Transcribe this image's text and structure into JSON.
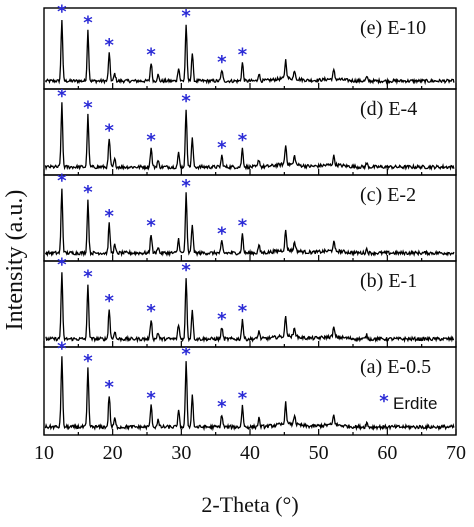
{
  "colors": {
    "trace": "#000000",
    "marker": "#2a2ad6",
    "frame": "#000000"
  },
  "chart_data": {
    "type": "line",
    "xlabel": "2-Theta (°)",
    "ylabel": "Intensity (a.u.)",
    "xlim": [
      10,
      70
    ],
    "x_ticks": [
      "10",
      "20",
      "30",
      "40",
      "50",
      "60",
      "70"
    ],
    "stacked_panels": true,
    "peak_marker": {
      "symbol": "*",
      "label": "Erdite"
    },
    "peaks": [
      {
        "x": 12.6,
        "h": 1.0,
        "marked": true
      },
      {
        "x": 16.4,
        "h": 0.82,
        "marked": true
      },
      {
        "x": 19.5,
        "h": 0.45,
        "marked": true
      },
      {
        "x": 20.3,
        "h": 0.12,
        "marked": false
      },
      {
        "x": 25.6,
        "h": 0.3,
        "marked": true
      },
      {
        "x": 26.6,
        "h": 0.1,
        "marked": false
      },
      {
        "x": 29.6,
        "h": 0.22,
        "marked": false
      },
      {
        "x": 30.7,
        "h": 0.92,
        "marked": true
      },
      {
        "x": 31.6,
        "h": 0.45,
        "marked": false
      },
      {
        "x": 35.9,
        "h": 0.18,
        "marked": true
      },
      {
        "x": 38.9,
        "h": 0.3,
        "marked": true
      },
      {
        "x": 41.3,
        "h": 0.12,
        "marked": false
      },
      {
        "x": 45.2,
        "h": 0.3,
        "marked": false
      },
      {
        "x": 46.5,
        "h": 0.14,
        "marked": false
      },
      {
        "x": 52.2,
        "h": 0.14,
        "marked": false
      },
      {
        "x": 57.0,
        "h": 0.06,
        "marked": false
      }
    ],
    "series": [
      {
        "name": "(e) E-10",
        "scale": 0.95
      },
      {
        "name": "(d) E-4",
        "scale": 0.9
      },
      {
        "name": "(c) E-2",
        "scale": 0.92
      },
      {
        "name": "(b) E-1",
        "scale": 0.95
      },
      {
        "name": "(a) E-0.5",
        "scale": 0.98
      }
    ]
  }
}
